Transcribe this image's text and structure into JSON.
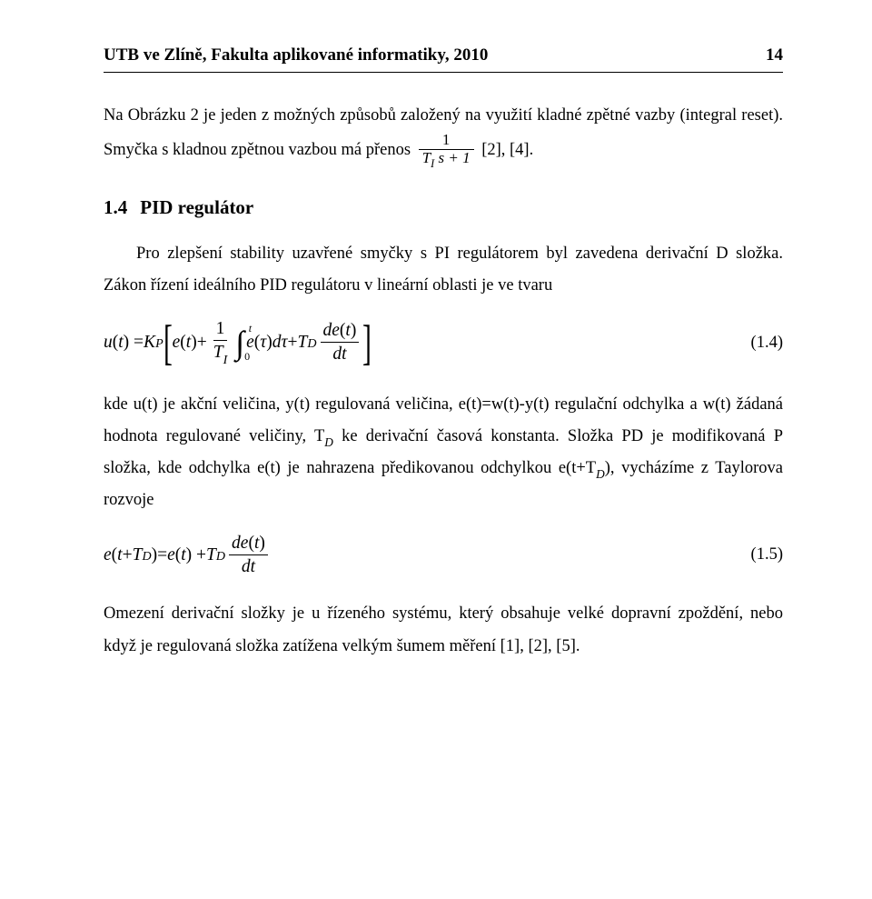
{
  "header": {
    "left": "UTB ve Zlíně, Fakulta aplikované informatiky, 2010",
    "page_number": "14"
  },
  "para1_a": "Na Obrázku 2 je jeden z možných způsobů založený na využití kladné zpětné vazby (integral reset). Smyčka s kladnou zpětnou vazbou má přenos ",
  "frac1_num": "1",
  "frac1_den_a": "T",
  "frac1_den_sub": "I",
  "frac1_den_b": " s + 1",
  "para1_b": " [2], [4].",
  "section": {
    "num": "1.4",
    "title": "PID regulátor"
  },
  "para2": "Pro zlepšení stability uzavřené smyčky s PI regulátorem byl zavedena derivační D složka. Zákon řízení ideálního PID regulátoru v lineární oblasti je ve tvaru",
  "eq1": {
    "lhs_a": "u",
    "lhs_b": "(",
    "lhs_c": "t",
    "lhs_d": ") = ",
    "K": "K",
    "P": "P",
    "open": "[",
    "e": "e",
    "lp": "(",
    "t": "t",
    "rp": ")",
    "plus": " + ",
    "one": "1",
    "TI_T": "T",
    "TI_I": "I",
    "int_top": "t",
    "int_bot": "0",
    "tau": "τ",
    "dtau": "dτ",
    "TD_T": "T",
    "TD_D": "D",
    "de": "de",
    "dt": "dt",
    "close": "]",
    "label": "(1.4)"
  },
  "para3": "kde u(t) je akční veličina, y(t) regulovaná veličina, e(t)=w(t)-y(t) regulační odchylka a w(t) žádaná hodnota regulované veličiny, T",
  "para3_sub1": "D",
  "para3_b": " ke derivační časová konstanta. Složka PD je modifikovaná P složka, kde odchylka e(t) je nahrazena předikovanou odchylkou e(t+T",
  "para3_sub2": "D",
  "para3_c": "), vycházíme z Taylorova rozvoje",
  "eq2": {
    "lhs": "e",
    "lp": "(",
    "t": "t",
    "plus": " + ",
    "T": "T",
    "D": "D",
    "rp": ")",
    "eq": " = ",
    "rp2": ") + ",
    "de": "de",
    "dt": "dt",
    "label": "(1.5)"
  },
  "para4": "Omezení derivační složky je u řízeného systému, který obsahuje velké dopravní zpoždění, nebo když je regulovaná složka zatížena velkým šumem měření [1], [2], [5]."
}
